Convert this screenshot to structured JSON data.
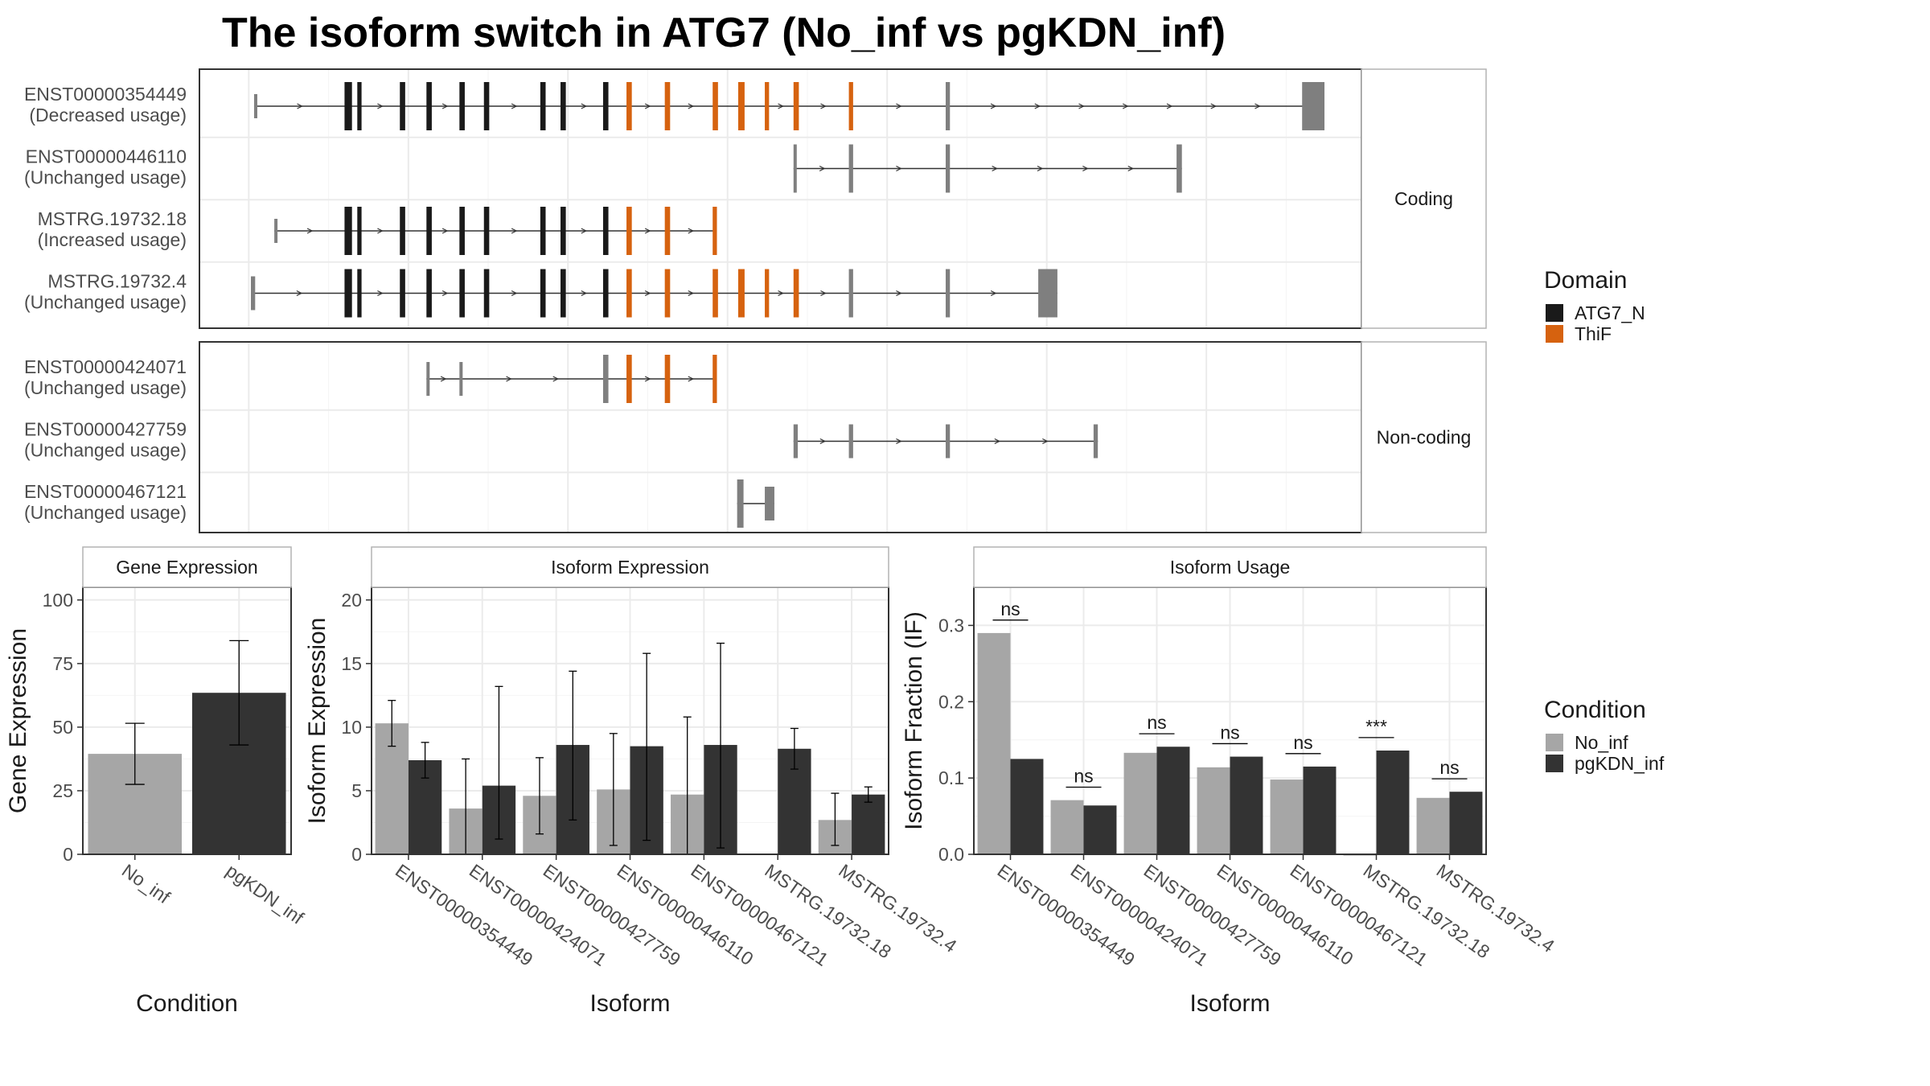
{
  "title": "The isoform switch in ATG7 (No_inf vs pgKDN_inf)",
  "colors": {
    "atg7_n": "#1a1a1a",
    "thif": "#d6620f",
    "exon_plain": "#7f7f7f",
    "no_inf": "#a6a6a6",
    "pgkdn_inf": "#333333",
    "grid": "#ebebeb",
    "strip_fill": "#ffffff",
    "strip_border": "#b3b3b3",
    "panel_border": "#333333",
    "text": "#1a1a1a",
    "axis_text": "#4d4d4d"
  },
  "domain_legend": {
    "title": "Domain",
    "items": [
      {
        "label": "ATG7_N",
        "color": "#1a1a1a"
      },
      {
        "label": "ThiF",
        "color": "#d6620f"
      }
    ]
  },
  "condition_legend": {
    "title": "Condition",
    "items": [
      {
        "label": "No_inf",
        "color": "#a6a6a6"
      },
      {
        "label": "pgKDN_inf",
        "color": "#333333"
      }
    ]
  },
  "isoform_structure": {
    "coding_label": "Coding",
    "noncoding_label": "Non-coding",
    "coding": [
      {
        "id": "ENST00000354449",
        "usage": "(Decreased usage)",
        "start": 3,
        "end": 1009,
        "exons": [
          {
            "s": 3,
            "e": 5,
            "c": "plain",
            "h": 0.5
          },
          {
            "s": 88,
            "e": 95,
            "c": "atg7",
            "h": 1
          },
          {
            "s": 100,
            "e": 104,
            "c": "atg7",
            "h": 1
          },
          {
            "s": 140,
            "e": 145,
            "c": "atg7",
            "h": 1
          },
          {
            "s": 165,
            "e": 170,
            "c": "atg7",
            "h": 1
          },
          {
            "s": 196,
            "e": 201,
            "c": "atg7",
            "h": 1
          },
          {
            "s": 219,
            "e": 224,
            "c": "atg7",
            "h": 1
          },
          {
            "s": 272,
            "e": 277,
            "c": "atg7",
            "h": 1
          },
          {
            "s": 291,
            "e": 296,
            "c": "atg7",
            "h": 1
          },
          {
            "s": 331,
            "e": 336,
            "c": "atg7",
            "h": 1
          },
          {
            "s": 353,
            "e": 358,
            "c": "thif",
            "h": 1
          },
          {
            "s": 389,
            "e": 394,
            "c": "thif",
            "h": 1
          },
          {
            "s": 434,
            "e": 439,
            "c": "thif",
            "h": 1
          },
          {
            "s": 458,
            "e": 464,
            "c": "thif",
            "h": 1
          },
          {
            "s": 483,
            "e": 487,
            "c": "thif",
            "h": 1
          },
          {
            "s": 510,
            "e": 515,
            "c": "thif",
            "h": 1
          },
          {
            "s": 562,
            "e": 566,
            "c": "thif",
            "h": 1
          },
          {
            "s": 653,
            "e": 657,
            "c": "plain",
            "h": 1
          },
          {
            "s": 988,
            "e": 1009,
            "c": "plain",
            "h": 1
          }
        ]
      },
      {
        "id": "ENST00000446110",
        "usage": "(Unchanged usage)",
        "start": 510,
        "end": 875,
        "exons": [
          {
            "s": 510,
            "e": 513,
            "c": "plain",
            "h": 1
          },
          {
            "s": 562,
            "e": 566,
            "c": "plain",
            "h": 1
          },
          {
            "s": 653,
            "e": 657,
            "c": "plain",
            "h": 1
          },
          {
            "s": 870,
            "e": 875,
            "c": "plain",
            "h": 1
          }
        ]
      },
      {
        "id": "MSTRG.19732.18",
        "usage": "(Increased usage)",
        "start": 22,
        "end": 438,
        "exons": [
          {
            "s": 22,
            "e": 24,
            "c": "plain",
            "h": 0.5
          },
          {
            "s": 88,
            "e": 95,
            "c": "atg7",
            "h": 1
          },
          {
            "s": 100,
            "e": 104,
            "c": "atg7",
            "h": 1
          },
          {
            "s": 140,
            "e": 145,
            "c": "atg7",
            "h": 1
          },
          {
            "s": 165,
            "e": 170,
            "c": "atg7",
            "h": 1
          },
          {
            "s": 196,
            "e": 201,
            "c": "atg7",
            "h": 1
          },
          {
            "s": 219,
            "e": 224,
            "c": "atg7",
            "h": 1
          },
          {
            "s": 272,
            "e": 277,
            "c": "atg7",
            "h": 1
          },
          {
            "s": 291,
            "e": 296,
            "c": "atg7",
            "h": 1
          },
          {
            "s": 331,
            "e": 336,
            "c": "atg7",
            "h": 1
          },
          {
            "s": 353,
            "e": 358,
            "c": "thif",
            "h": 1
          },
          {
            "s": 389,
            "e": 394,
            "c": "thif",
            "h": 1
          },
          {
            "s": 434,
            "e": 438,
            "c": "thif",
            "h": 1
          }
        ]
      },
      {
        "id": "MSTRG.19732.4",
        "usage": "(Unchanged usage)",
        "start": 0,
        "end": 758,
        "exons": [
          {
            "s": 0,
            "e": 4,
            "c": "plain",
            "h": 0.7
          },
          {
            "s": 88,
            "e": 95,
            "c": "atg7",
            "h": 1
          },
          {
            "s": 100,
            "e": 104,
            "c": "atg7",
            "h": 1
          },
          {
            "s": 140,
            "e": 145,
            "c": "atg7",
            "h": 1
          },
          {
            "s": 165,
            "e": 170,
            "c": "atg7",
            "h": 1
          },
          {
            "s": 196,
            "e": 201,
            "c": "atg7",
            "h": 1
          },
          {
            "s": 219,
            "e": 224,
            "c": "atg7",
            "h": 1
          },
          {
            "s": 272,
            "e": 277,
            "c": "atg7",
            "h": 1
          },
          {
            "s": 291,
            "e": 296,
            "c": "atg7",
            "h": 1
          },
          {
            "s": 331,
            "e": 336,
            "c": "atg7",
            "h": 1
          },
          {
            "s": 353,
            "e": 358,
            "c": "thif",
            "h": 1
          },
          {
            "s": 389,
            "e": 394,
            "c": "thif",
            "h": 1
          },
          {
            "s": 434,
            "e": 439,
            "c": "thif",
            "h": 1
          },
          {
            "s": 458,
            "e": 464,
            "c": "thif",
            "h": 1
          },
          {
            "s": 483,
            "e": 487,
            "c": "thif",
            "h": 1
          },
          {
            "s": 510,
            "e": 515,
            "c": "thif",
            "h": 1
          },
          {
            "s": 562,
            "e": 566,
            "c": "plain",
            "h": 1
          },
          {
            "s": 653,
            "e": 657,
            "c": "plain",
            "h": 1
          },
          {
            "s": 740,
            "e": 758,
            "c": "plain",
            "h": 1
          }
        ]
      }
    ],
    "noncoding": [
      {
        "id": "ENST00000424071",
        "usage": "(Unchanged usage)",
        "start": 165,
        "end": 438,
        "exons": [
          {
            "s": 165,
            "e": 167,
            "c": "plain",
            "h": 0.7
          },
          {
            "s": 196,
            "e": 199,
            "c": "plain",
            "h": 0.7
          },
          {
            "s": 331,
            "e": 336,
            "c": "plain",
            "h": 1
          },
          {
            "s": 353,
            "e": 358,
            "c": "thif",
            "h": 1
          },
          {
            "s": 389,
            "e": 394,
            "c": "thif",
            "h": 1
          },
          {
            "s": 434,
            "e": 438,
            "c": "thif",
            "h": 1
          }
        ]
      },
      {
        "id": "ENST00000427759",
        "usage": "(Unchanged usage)",
        "start": 510,
        "end": 796,
        "exons": [
          {
            "s": 510,
            "e": 514,
            "c": "plain",
            "h": 0.7
          },
          {
            "s": 562,
            "e": 566,
            "c": "plain",
            "h": 0.7
          },
          {
            "s": 653,
            "e": 657,
            "c": "plain",
            "h": 0.7
          },
          {
            "s": 792,
            "e": 796,
            "c": "plain",
            "h": 0.7
          }
        ]
      },
      {
        "id": "ENST00000467121",
        "usage": "(Unchanged usage)",
        "start": 457,
        "end": 492,
        "exons": [
          {
            "s": 457,
            "e": 463,
            "c": "plain",
            "h": 1
          },
          {
            "s": 483,
            "e": 492,
            "c": "plain",
            "h": 0.7
          }
        ]
      }
    ]
  },
  "chart_data": [
    {
      "type": "bar",
      "title": "Gene Expression",
      "xlabel": "Condition",
      "ylabel": "Gene Expression",
      "ylim": [
        0,
        105
      ],
      "yticks": [
        0,
        25,
        50,
        75,
        100
      ],
      "categories": [
        "No_inf",
        "pgKDN_inf"
      ],
      "values": [
        39.5,
        63.5
      ],
      "errors": [
        [
          27.5,
          51.5
        ],
        [
          43,
          84
        ]
      ]
    },
    {
      "type": "bar",
      "title": "Isoform Expression",
      "xlabel": "Isoform",
      "ylabel": "Isoform Expression",
      "ylim": [
        0,
        21
      ],
      "yticks": [
        0,
        5,
        10,
        15,
        20
      ],
      "categories": [
        "ENST00000354449",
        "ENST00000424071",
        "ENST00000427759",
        "ENST00000446110",
        "ENST00000467121",
        "MSTRG.19732.18",
        "MSTRG.19732.4"
      ],
      "series": [
        {
          "name": "No_inf",
          "values": [
            10.3,
            3.6,
            4.6,
            5.1,
            4.7,
            0.05,
            2.7
          ],
          "errors": [
            [
              8.5,
              12.1
            ],
            [
              0,
              7.5
            ],
            [
              1.6,
              7.6
            ],
            [
              0.7,
              9.5
            ],
            [
              0,
              10.8
            ],
            null,
            [
              0.7,
              4.8
            ]
          ]
        },
        {
          "name": "pgKDN_inf",
          "values": [
            7.4,
            5.4,
            8.6,
            8.5,
            8.6,
            8.3,
            4.7
          ],
          "errors": [
            [
              6.0,
              8.8
            ],
            [
              1.2,
              13.2
            ],
            [
              2.7,
              14.4
            ],
            [
              1.1,
              15.8
            ],
            [
              0.5,
              16.6
            ],
            [
              6.7,
              9.9
            ],
            [
              4.1,
              5.3
            ]
          ]
        }
      ]
    },
    {
      "type": "bar",
      "title": "Isoform Usage",
      "xlabel": "Isoform",
      "ylabel": "Isoform Fraction (IF)",
      "ylim": [
        0,
        0.35
      ],
      "yticks": [
        0.0,
        0.1,
        0.2,
        0.3
      ],
      "ytick_labels": [
        "0.0",
        "0.1",
        "0.2",
        "0.3"
      ],
      "categories": [
        "ENST00000354449",
        "ENST00000424071",
        "ENST00000427759",
        "ENST00000446110",
        "ENST00000467121",
        "MSTRG.19732.18",
        "MSTRG.19732.4"
      ],
      "series": [
        {
          "name": "No_inf",
          "values": [
            0.29,
            0.071,
            0.133,
            0.114,
            0.098,
            0.0,
            0.074
          ]
        },
        {
          "name": "pgKDN_inf",
          "values": [
            0.125,
            0.064,
            0.141,
            0.128,
            0.115,
            0.136,
            0.082
          ]
        }
      ],
      "significance": [
        "ns",
        "ns",
        "ns",
        "ns",
        "ns",
        "***",
        "ns"
      ]
    }
  ]
}
